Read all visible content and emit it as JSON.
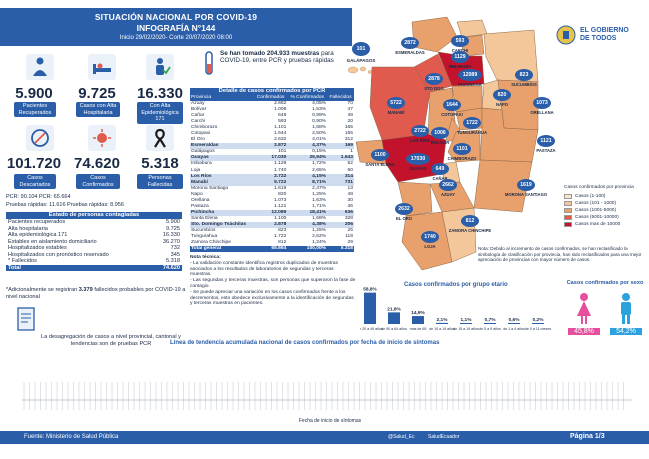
{
  "header": {
    "title": "SITUACIÓN NACIONAL POR COVID-19",
    "subtitle": "INFOGRAFÍA N°144",
    "dates": "Inicio 29/02/2020- Corte 20/07/2020 08:00",
    "logo_text": "EL GOBIERNO DE TODOS"
  },
  "stats": {
    "recuperados": {
      "value": "5.900",
      "label": "Pacientes Recuperados"
    },
    "alta_hosp": {
      "value": "9.725",
      "label": "Casos con Alta Hospitalaria"
    },
    "alta_epi": {
      "value": "16.330",
      "label": "Con Alta Epidemiológica 171"
    },
    "descartados": {
      "value": "101.720",
      "label": "Casos Descartados"
    },
    "confirmados": {
      "value": "74.620",
      "label": "Casos Confirmados"
    },
    "fallecidas": {
      "value": "5.318",
      "label": "Personas Fallecidas"
    }
  },
  "pcr_line1": "PCR: 90.104     PCR: 65.664",
  "pcr_line2": "Pruebas rápidas: 11.616   Pruebas rápidas: 8.956",
  "tests_note": {
    "highlight": "Se han tomado 204.933 muestras",
    "rest": " para COVID-19, entre PCR y pruebas rápidas"
  },
  "galapagos_badge": "101",
  "galapagos_label": "GALÁPAGOS",
  "estado": {
    "title": "Estado de personas contagiadas",
    "rows": [
      {
        "label": "Pacientes recuperados",
        "value": "5.900"
      },
      {
        "label": "Alta hospitalaria",
        "value": "9.725"
      },
      {
        "label": "Alta epidemiológica 171",
        "value": "16.330"
      },
      {
        "label": "Estables en aislamiento domiciliario",
        "value": "36.270"
      },
      {
        "label": "Hospitalizados estables",
        "value": "732"
      },
      {
        "label": "Hospitalizados con pronóstico reservado",
        "value": "345"
      },
      {
        "label": "* Fallecidos",
        "value": "5.318"
      }
    ],
    "total_label": "Total",
    "total_value": "74.620"
  },
  "note_fallecidos": {
    "prefix": "*Adicionalmente se registran ",
    "bold": "3.379",
    "suffix": " fallecidos probables por COVID-19 a nivel nacional"
  },
  "desagregacion": "La desagregación de casos a nivel provincial, cantonal y tendencias son de pruebas PCR",
  "provinces_table": {
    "title": "Detalle de casos confirmados por PCR",
    "headers": [
      "Provincia",
      "Confirmados",
      "% Confirmados",
      "Fallecidos"
    ],
    "rows": [
      [
        "Azuay",
        "2.662",
        "4,05%",
        "70"
      ],
      [
        "Bolívar",
        "1.006",
        "1,53%",
        "47"
      ],
      [
        "Cañar",
        "649",
        "0,99%",
        "48"
      ],
      [
        "Carchi",
        "593",
        "0,90%",
        "20"
      ],
      [
        "Chimborazo",
        "1.101",
        "1,68%",
        "165"
      ],
      [
        "Cotopaxi",
        "1.644",
        "2,50%",
        "155"
      ],
      [
        "El Oro",
        "2.632",
        "4,01%",
        "312"
      ],
      [
        "Esmeraldas",
        "2.872",
        "4,37%",
        "169"
      ],
      [
        "Galápagos",
        "101",
        "0,15%",
        "1"
      ],
      [
        "Guayas",
        "17.030",
        "25,94%",
        "1.643"
      ],
      [
        "Imbabura",
        "1.129",
        "1,72%",
        "52"
      ],
      [
        "Loja",
        "1.740",
        "2,65%",
        "60"
      ],
      [
        "Los Ríos",
        "2.722",
        "4,15%",
        "314"
      ],
      [
        "Manabí",
        "5.722",
        "8,71%",
        "731"
      ],
      [
        "Morona Santiago",
        "1.619",
        "2,47%",
        "13"
      ],
      [
        "Napo",
        "820",
        "1,25%",
        "48"
      ],
      [
        "Orellana",
        "1.073",
        "1,63%",
        "30"
      ],
      [
        "Pastaza",
        "1.121",
        "1,71%",
        "36"
      ],
      [
        "Pichincha",
        "12.089",
        "18,41%",
        "636"
      ],
      [
        "Santa Elena",
        "1.100",
        "1,68%",
        "328"
      ],
      [
        "Sto. Domingo Tsáchilas",
        "2.878",
        "4,38%",
        "206"
      ],
      [
        "Sucumbíos",
        "823",
        "1,25%",
        "25"
      ],
      [
        "Tungurahua",
        "1.722",
        "2,62%",
        "119"
      ],
      [
        "Zamora Chinchipe",
        "812",
        "1,24%",
        "29"
      ]
    ],
    "highlight_rows": [
      7,
      9,
      12,
      13,
      18,
      20
    ],
    "total": [
      "Total general",
      "65.664",
      "100,00%",
      "5.318"
    ]
  },
  "nota_tecnica": {
    "title": "Nota técnica:",
    "lines": [
      "- La validación constante identifica registros duplicados de muestras asociados a los resultados de laboratorios de segundas y terceras muestras.",
      "- Las segundas y terceras muestras, son personas que superaron la fase de contagio.",
      "- Se puede apreciar una variación en los casos confirmados frente a los decrementos, esto obedece exclusivamente a la identificación de segundas y terceras muestras en pacientes."
    ]
  },
  "map": {
    "provinces": [
      {
        "name": "ESMERALDAS",
        "value": "2872"
      },
      {
        "name": "CARCHI",
        "value": "593"
      },
      {
        "name": "IMBABURA",
        "value": "1129"
      },
      {
        "name": "SUCUMBÍOS",
        "value": "823"
      },
      {
        "name": "PICHINCHA",
        "value": "12089"
      },
      {
        "name": "STO DGO",
        "value": "2878"
      },
      {
        "name": "NAPO",
        "value": "820"
      },
      {
        "name": "ORELLANA",
        "value": "1073"
      },
      {
        "name": "MANABÍ",
        "value": "5722"
      },
      {
        "name": "COTOPAXI",
        "value": "1644"
      },
      {
        "name": "TUNGURAHUA",
        "value": "1722"
      },
      {
        "name": "LOS RÍOS",
        "value": "2722"
      },
      {
        "name": "BOLÍVAR",
        "value": "1006"
      },
      {
        "name": "PASTAZA",
        "value": "1121"
      },
      {
        "name": "SANTA ELENA",
        "value": "1100"
      },
      {
        "name": "GUAYAS",
        "value": "17030"
      },
      {
        "name": "CHIMBORAZO",
        "value": "1101"
      },
      {
        "name": "MORONA SANTIAGO",
        "value": "1619"
      },
      {
        "name": "CAÑAR",
        "value": "649"
      },
      {
        "name": "AZUAY",
        "value": "2662"
      },
      {
        "name": "EL ORO",
        "value": "2632"
      },
      {
        "name": "LOJA",
        "value": "1740"
      },
      {
        "name": "ZAMORA CHINCHIPE",
        "value": "812"
      }
    ],
    "legend_title": "Casos confirmados por provincia",
    "legend": [
      {
        "label": "Casos (1-100)",
        "color": "#fbe7cf"
      },
      {
        "label": "Casos (101 - 1000)",
        "color": "#f4c79a"
      },
      {
        "label": "Casos (1001-5000)",
        "color": "#e8a06c"
      },
      {
        "label": "Casos (5001-10000)",
        "color": "#e05a4e"
      },
      {
        "label": "Casos mas de 10000",
        "color": "#c3122b"
      }
    ],
    "note": "Nota: Debido al incremento de casos confirmados, se han reclasificado la simbología de clasificación por provincia, han sido reclasificados para una mejor apreciación de provincias con mayor número de casos."
  },
  "age_chart": {
    "title": "Casos confirmados por grupo etario",
    "categories": [
      "de 20 a 49 años",
      "de 50 a 64 años",
      "mas de 65",
      "de 10 a 19 años",
      "de 15 a 19 años",
      "de 5 a 9 años",
      "de 1 a 4 años",
      "de 0 a 11 meses"
    ],
    "values": [
      58.8,
      21.8,
      14.9,
      2.1,
      1.1,
      0.7,
      0.6,
      0.2
    ],
    "labels": [
      "58,8%",
      "21,8%",
      "14,9%",
      "2,1%",
      "1,1%",
      "0,7%",
      "0,6%",
      "0,2%"
    ]
  },
  "sex_chart": {
    "title": "Casos confirmados por sexo",
    "female": "45,8%",
    "male": "54,2%"
  },
  "trend_title": "Línea de tendencia acumulada nacional de casos confirmados por fecha de inicio de síntomas",
  "trend_xlabel": "Fecha de inicio de síntomas",
  "footer": {
    "source": "Fuente: Ministerio de Salud Pública",
    "social1": "@Salud_Ec",
    "social2": "SaludEcuador",
    "page": "Página 1/3"
  }
}
